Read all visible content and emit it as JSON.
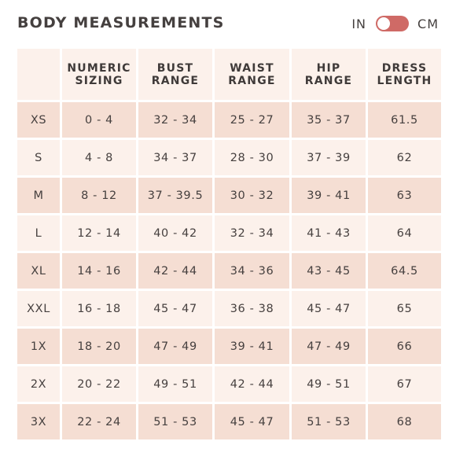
{
  "header": {
    "title": "BODY MEASUREMENTS",
    "unit_left": "IN",
    "unit_right": "CM",
    "toggle_state": "IN"
  },
  "colors": {
    "accent": "#cf6a66",
    "row_dark": "#f5ded3",
    "row_light": "#fcf1eb",
    "text": "#3f3a39"
  },
  "table": {
    "columns": [
      {
        "line1": "",
        "line2": ""
      },
      {
        "line1": "NUMERIC",
        "line2": "SIZING"
      },
      {
        "line1": "BUST",
        "line2": "RANGE"
      },
      {
        "line1": "WAIST",
        "line2": "RANGE"
      },
      {
        "line1": "HIP",
        "line2": "RANGE"
      },
      {
        "line1": "DRESS",
        "line2": "LENGTH"
      }
    ],
    "rows": [
      [
        "XS",
        "0 - 4",
        "32 - 34",
        "25 - 27",
        "35 - 37",
        "61.5"
      ],
      [
        "S",
        "4 - 8",
        "34 - 37",
        "28 - 30",
        "37 - 39",
        "62"
      ],
      [
        "M",
        "8 - 12",
        "37 - 39.5",
        "30 - 32",
        "39 - 41",
        "63"
      ],
      [
        "L",
        "12 - 14",
        "40 - 42",
        "32 - 34",
        "41 - 43",
        "64"
      ],
      [
        "XL",
        "14 - 16",
        "42 - 44",
        "34 - 36",
        "43 - 45",
        "64.5"
      ],
      [
        "XXL",
        "16 - 18",
        "45 - 47",
        "36 - 38",
        "45 - 47",
        "65"
      ],
      [
        "1X",
        "18 - 20",
        "47 - 49",
        "39 - 41",
        "47 - 49",
        "66"
      ],
      [
        "2X",
        "20 - 22",
        "49 - 51",
        "42 - 44",
        "49 - 51",
        "67"
      ],
      [
        "3X",
        "22 - 24",
        "51 - 53",
        "45 - 47",
        "51 - 53",
        "68"
      ]
    ]
  }
}
